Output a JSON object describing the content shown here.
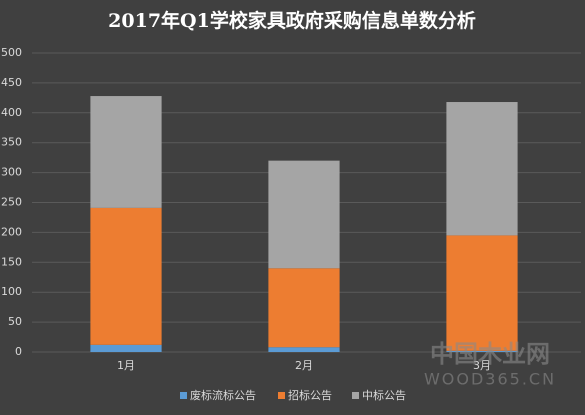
{
  "chart_data": {
    "type": "stacked_bar",
    "title": "2017年Q1学校家具政府采购信息单数分析",
    "categories": [
      "1月",
      "2月",
      "3月"
    ],
    "series": [
      {
        "name": "废标流标公告",
        "color": "#5b9bd5",
        "values": [
          12,
          8,
          2
        ]
      },
      {
        "name": "招标公告",
        "color": "#ed7d31",
        "values": [
          229,
          132,
          193
        ]
      },
      {
        "name": "中标公告",
        "color": "#a5a5a5",
        "values": [
          187,
          180,
          223
        ]
      }
    ],
    "ylim": [
      0,
      500
    ],
    "yticks": [
      0,
      50,
      100,
      150,
      200,
      250,
      300,
      350,
      400,
      450,
      500
    ],
    "grid": true,
    "legend": "bottom",
    "watermark": [
      "中国木业网",
      "WOOD365.CN"
    ]
  }
}
